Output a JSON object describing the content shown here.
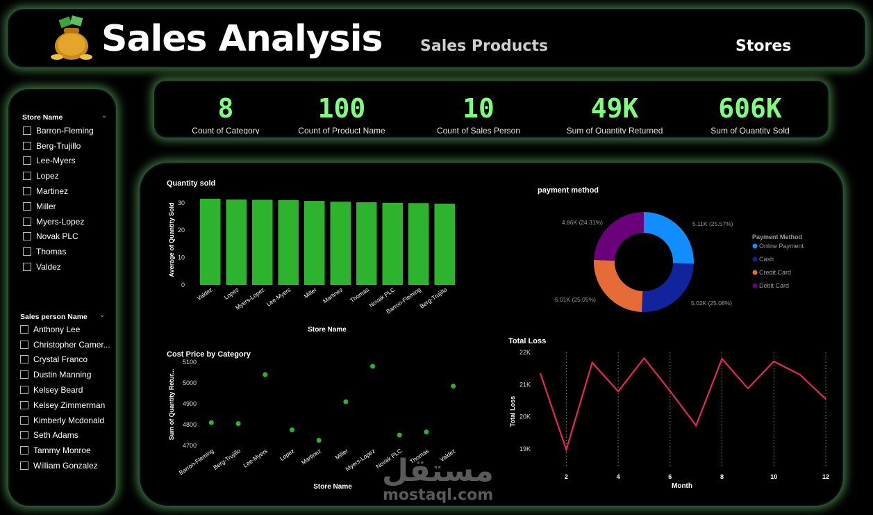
{
  "header": {
    "title": "Sales Analysis",
    "logo_icon": "money-bag-icon",
    "nav": [
      "Sales Products",
      "Stores"
    ]
  },
  "slicers": {
    "store": {
      "title": "Store Name",
      "items": [
        "Barron-Fleming",
        "Berg-Trujillo",
        "Lee-Myers",
        "Lopez",
        "Martinez",
        "Miller",
        "Myers-Lopez",
        "Novak PLC",
        "Thomas",
        "Valdez"
      ]
    },
    "salesperson": {
      "title": "Sales person Name",
      "items": [
        "Anthony Lee",
        "Christopher Camer...",
        "Crystal Franco",
        "Dustin Manning",
        "Kelsey Beard",
        "Kelsey Zimmerman",
        "Kimberly Mcdonald",
        "Seth Adams",
        "Tammy Monroe",
        "William Gonzalez"
      ]
    }
  },
  "kpis": [
    {
      "value": "8",
      "label": "Count of Category"
    },
    {
      "value": "100",
      "label": "Count of Product Name"
    },
    {
      "value": "10",
      "label": "Count of Sales Person"
    },
    {
      "value": "49K",
      "label": "Sum of Quantity Returned"
    },
    {
      "value": "606K",
      "label": "Sum of Quantity Sold"
    }
  ],
  "colors": {
    "kpi_value": "#7dff7d",
    "bar": "#2db32d",
    "scatter": "#2db32d",
    "line": "#e8265a",
    "online_payment": "#118dff",
    "cash": "#12239e",
    "credit_card": "#e66c37",
    "debit_card": "#6b007b"
  },
  "chart_data": [
    {
      "type": "bar",
      "title": "Quantity sold",
      "xlabel": "Store Name",
      "ylabel": "Average of Quantity Sold",
      "categories": [
        "Valdez",
        "Lopez",
        "Myers-Lopez",
        "Lee-Myers",
        "Miller",
        "Martinez",
        "Thomas",
        "Novak PLC",
        "Barron-Fleming",
        "Berg-Trujillo"
      ],
      "values": [
        31.5,
        31.2,
        31.1,
        31.0,
        30.7,
        30.4,
        30.2,
        30.0,
        29.9,
        29.7
      ],
      "yticks": [
        0,
        10,
        20,
        30
      ],
      "ylim": [
        0,
        33
      ]
    },
    {
      "type": "pie",
      "title": "payment method",
      "legend_title": "Payment Method",
      "legend_position": "right",
      "labels": [
        "Online Payment",
        "Cash",
        "Credit Card",
        "Debit Card"
      ],
      "values": [
        5110,
        5020,
        5010,
        4860
      ],
      "data_labels": [
        "5.11K (25.57%)",
        "5.02K (25.08%)",
        "5.01K (25.05%)",
        "4.86K (24.31%)"
      ]
    },
    {
      "type": "scatter",
      "title": "Cost Price by Category",
      "xlabel": "Store Name",
      "ylabel": "Sum of Quantity Retur...",
      "categories": [
        "Barron-Fleming",
        "Berg-Trujillo",
        "Lee-Myers",
        "Lopez",
        "Martinez",
        "Miller",
        "Myers-Lopez",
        "Novak PLC",
        "Thomas",
        "Valdez"
      ],
      "values": [
        4810,
        4805,
        5040,
        4775,
        4725,
        4910,
        5080,
        4750,
        4765,
        4985
      ],
      "yticks": [
        4700,
        4800,
        4900,
        5000,
        5100
      ],
      "ylim": [
        4680,
        5120
      ]
    },
    {
      "type": "line",
      "title": "Total Loss",
      "xlabel": "Month",
      "ylabel": "Total Loss",
      "x": [
        1,
        2,
        3,
        4,
        5,
        6,
        7,
        8,
        9,
        10,
        11,
        12
      ],
      "values": [
        21350,
        18980,
        21680,
        20790,
        21820,
        20800,
        19730,
        21800,
        20880,
        21720,
        21310,
        20550
      ],
      "xticks": [
        2,
        4,
        6,
        8,
        10,
        12
      ],
      "yticks": [
        19000,
        20000,
        21000,
        22000
      ],
      "ytick_labels": [
        "19K",
        "20K",
        "21K",
        "22K"
      ],
      "ylim": [
        18700,
        22000
      ]
    }
  ],
  "watermark": {
    "arabic": "مستقل",
    "latin": "mostaql.com"
  }
}
